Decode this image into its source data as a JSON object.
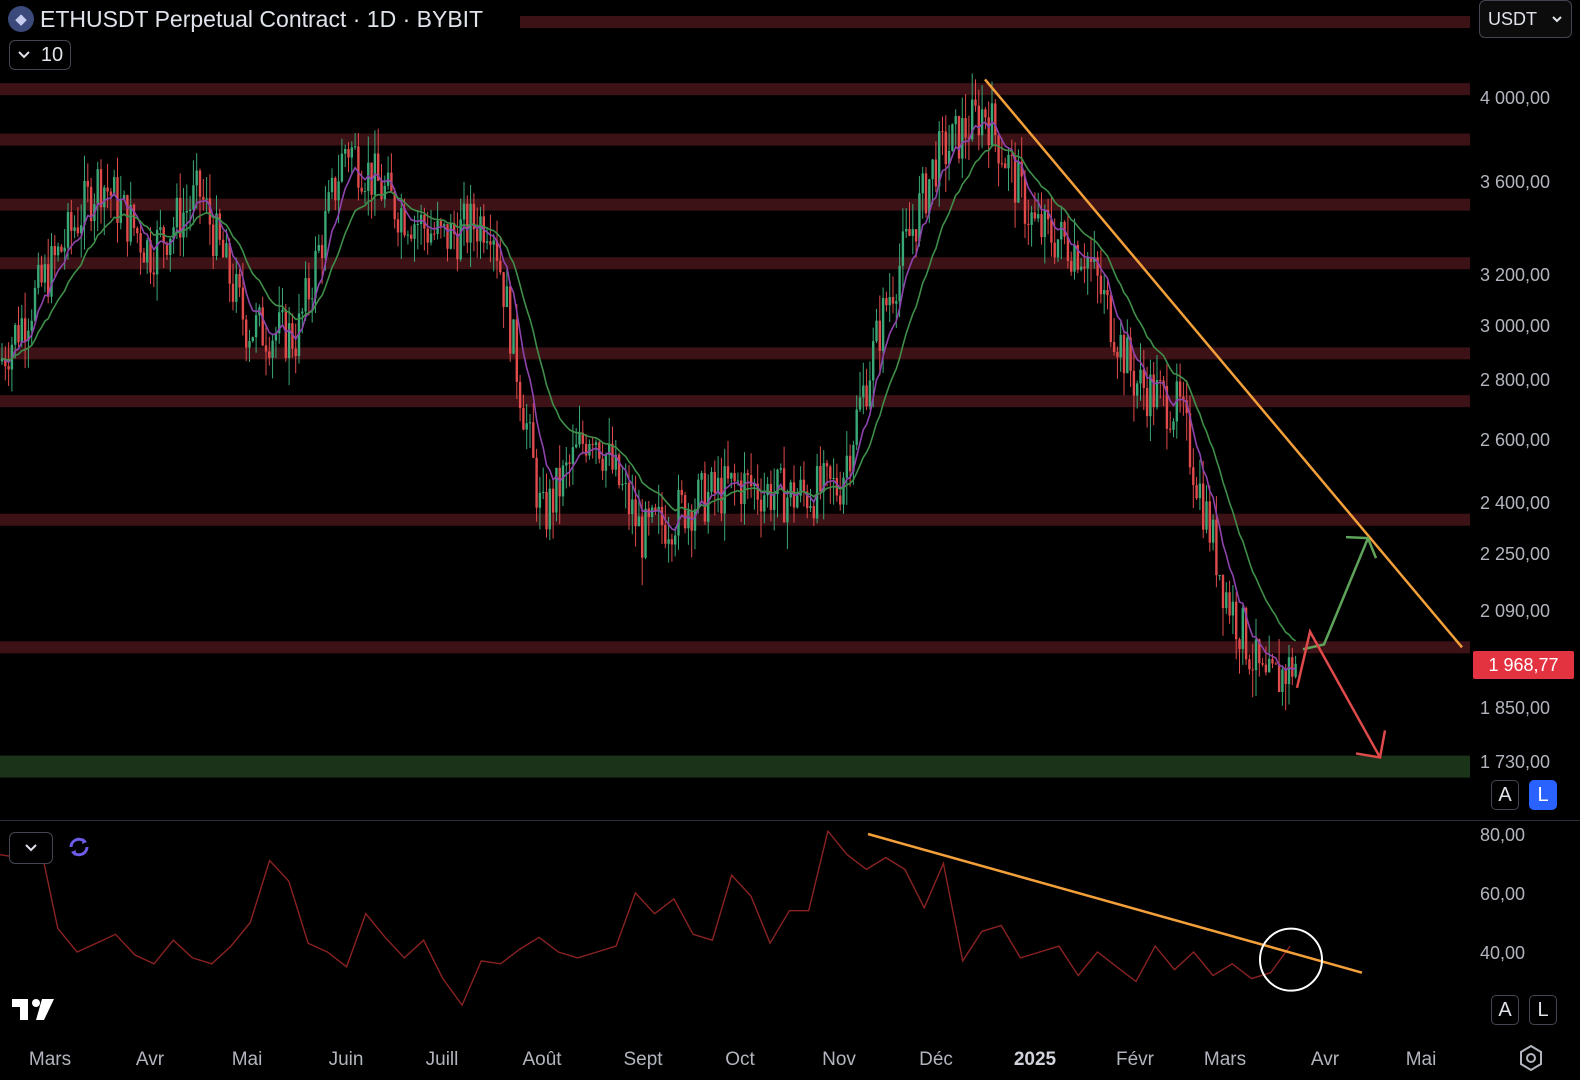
{
  "header": {
    "title": "ETHUSDT Perpetual Contract · 1D · BYBIT",
    "interval_value": "10",
    "currency": "USDT"
  },
  "price_scale": {
    "labels": [
      "4 000,00",
      "3 600,00",
      "3 200,00",
      "3 000,00",
      "2 800,00",
      "2 600,00",
      "2 400,00",
      "2 250,00",
      "2 090,00",
      "1 850,00",
      "1 730,00"
    ],
    "current_price": "1 968,77",
    "current_price_color": "#e33340"
  },
  "rsi_scale": {
    "labels": [
      "80,00",
      "60,00",
      "40,00"
    ]
  },
  "scale_buttons": {
    "auto": "A",
    "log": "L"
  },
  "time_axis": [
    "Mars",
    "Avr",
    "Mai",
    "Juin",
    "Juill",
    "Août",
    "Sept",
    "Oct",
    "Nov",
    "Déc",
    "2025",
    "Févr",
    "Mars",
    "Avr",
    "Mai"
  ],
  "colors": {
    "background": "#000000",
    "resistance_zone": "#3d1216",
    "support_zone": "#1b3319",
    "trendline": "#f4a03a",
    "candle_up": "#3aa876",
    "candle_down": "#e04a4a",
    "ema_fast": "#8e44ad",
    "ema_slow": "#3f8f4a",
    "rsi_line": "#8a2222",
    "bull_arrow": "#5fa35a",
    "bear_arrow": "#e04a4a"
  },
  "icons": {
    "logo": "ethereum-logo-icon",
    "chevron": "chevron-down-icon",
    "sync": "sync-icon",
    "settings": "settings-gear-icon",
    "brand": "tradingview-logo"
  },
  "chart_data": {
    "type": "candlestick",
    "symbol": "ETHUSDT",
    "timeframe": "1D",
    "exchange": "BYBIT",
    "y_axis_log": true,
    "ylim": [
      1700,
      4150
    ],
    "resistance_zones": [
      4050,
      3800,
      3500,
      3250,
      2900,
      2730,
      2350,
      2000
    ],
    "support_zone": 1720,
    "price_path": [
      [
        "Mars",
        2870
      ],
      [
        "Mars-mid",
        3620
      ],
      [
        "Avr",
        3300
      ],
      [
        "Avr-mid",
        3550
      ],
      [
        "Mai",
        3000
      ],
      [
        "Mai-mid",
        2960
      ],
      [
        "Juin",
        3780
      ],
      [
        "Juin-mid",
        3500
      ],
      [
        "Juill",
        3350
      ],
      [
        "Juill-mid",
        3450
      ],
      [
        "Août",
        2350
      ],
      [
        "Août-mid",
        2650
      ],
      [
        "Sept",
        2300
      ],
      [
        "Sept-mid",
        2400
      ],
      [
        "Oct",
        2460
      ],
      [
        "Oct-mid",
        2420
      ],
      [
        "Nov",
        2450
      ],
      [
        "Nov-mid",
        3100
      ],
      [
        "Déc",
        3700
      ],
      [
        "Déc-mid",
        3950
      ],
      [
        "2025",
        3400
      ],
      [
        "2025-mid",
        3300
      ],
      [
        "Févr",
        2800
      ],
      [
        "Févr-mid",
        2700
      ],
      [
        "Mars",
        2150
      ],
      [
        "Mars-mid",
        1900
      ],
      [
        "last",
        1968.77
      ]
    ],
    "current_price": 1968.77,
    "trendline_price": {
      "from": [
        "Déc-mid",
        4100
      ],
      "to": [
        "Avr-end",
        2000
      ]
    },
    "projection_bull": [
      1970,
      2020,
      2270
    ],
    "projection_bear": [
      2040,
      1740
    ],
    "rsi": {
      "ylim": [
        20,
        90
      ],
      "trendline": {
        "from": 80,
        "to": 33
      },
      "path": [
        73,
        72,
        79,
        48,
        40,
        43,
        46,
        39,
        36,
        44,
        38,
        36,
        42,
        50,
        71,
        64,
        43,
        40,
        35,
        53,
        45,
        38,
        44,
        31,
        22,
        37,
        36,
        41,
        45,
        40,
        38,
        40,
        42,
        60,
        53,
        58,
        46,
        44,
        66,
        59,
        43,
        54,
        54,
        81,
        73,
        68,
        72,
        68,
        55,
        70,
        37,
        47,
        49,
        38,
        40,
        42,
        32,
        40,
        35,
        30,
        42,
        34,
        40,
        32,
        36,
        31,
        33,
        42
      ]
    }
  }
}
